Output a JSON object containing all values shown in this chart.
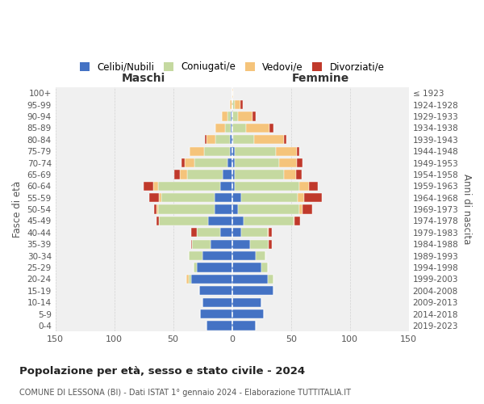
{
  "age_groups": [
    "100+",
    "95-99",
    "90-94",
    "85-89",
    "80-84",
    "75-79",
    "70-74",
    "65-69",
    "60-64",
    "55-59",
    "50-54",
    "45-49",
    "40-44",
    "35-39",
    "30-34",
    "25-29",
    "20-24",
    "15-19",
    "10-14",
    "5-9",
    "0-4"
  ],
  "birth_years": [
    "≤ 1923",
    "1924-1928",
    "1929-1933",
    "1934-1938",
    "1939-1943",
    "1944-1948",
    "1949-1953",
    "1954-1958",
    "1959-1963",
    "1964-1968",
    "1969-1973",
    "1974-1978",
    "1979-1983",
    "1984-1988",
    "1989-1993",
    "1994-1998",
    "1999-2003",
    "2004-2008",
    "2009-2013",
    "2014-2018",
    "2019-2023"
  ],
  "colors": {
    "celibi": "#4472c4",
    "coniugati": "#c5d9a0",
    "vedovi": "#f5c47b",
    "divorziati": "#c0392b"
  },
  "maschi_celibi": [
    0,
    0,
    1,
    1,
    2,
    2,
    4,
    8,
    10,
    15,
    15,
    20,
    10,
    18,
    25,
    30,
    35,
    28,
    25,
    27,
    22
  ],
  "maschi_coniugati": [
    0,
    0,
    3,
    5,
    12,
    22,
    28,
    30,
    53,
    45,
    48,
    42,
    20,
    16,
    12,
    3,
    2,
    0,
    0,
    0,
    0
  ],
  "maschi_vedovi": [
    0,
    2,
    5,
    8,
    8,
    12,
    8,
    6,
    4,
    2,
    1,
    0,
    0,
    0,
    0,
    0,
    2,
    0,
    0,
    0,
    0
  ],
  "maschi_divorziati": [
    0,
    0,
    0,
    0,
    1,
    0,
    3,
    5,
    8,
    8,
    2,
    2,
    5,
    1,
    0,
    0,
    0,
    0,
    0,
    0,
    0
  ],
  "femmine_celibi": [
    0,
    0,
    0,
    0,
    1,
    2,
    2,
    2,
    2,
    8,
    5,
    10,
    8,
    15,
    20,
    25,
    30,
    35,
    25,
    27,
    20
  ],
  "femmine_coniugati": [
    0,
    2,
    5,
    12,
    18,
    35,
    38,
    42,
    55,
    48,
    52,
    42,
    22,
    16,
    8,
    5,
    5,
    0,
    0,
    0,
    0
  ],
  "femmine_vedovi": [
    1,
    5,
    12,
    20,
    25,
    18,
    15,
    10,
    8,
    5,
    3,
    1,
    1,
    0,
    0,
    0,
    0,
    0,
    0,
    0,
    0
  ],
  "femmine_divorziati": [
    0,
    2,
    3,
    3,
    2,
    2,
    5,
    5,
    8,
    15,
    8,
    5,
    3,
    3,
    0,
    0,
    0,
    0,
    0,
    0,
    0
  ],
  "title": "Popolazione per età, sesso e stato civile - 2024",
  "subtitle": "COMUNE DI LESSONA (BI) - Dati ISTAT 1° gennaio 2024 - Elaborazione TUTTITALIA.IT",
  "maschi_label": "Maschi",
  "femmine_label": "Femmine",
  "ylabel": "Fasce di età",
  "ylabel_right": "Anni di nascita",
  "xlim": 150,
  "legend_labels": [
    "Celibi/Nubili",
    "Coniugati/e",
    "Vedovi/e",
    "Divorziati/e"
  ],
  "bg_color": "#f0f0f0"
}
